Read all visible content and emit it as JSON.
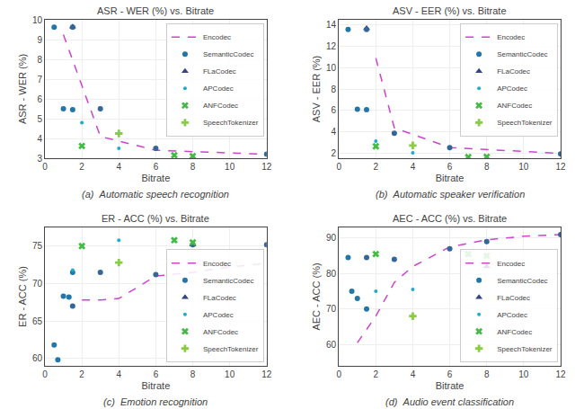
{
  "chart_data": [
    {
      "type": "scatter",
      "title": "ASR - WER (%) vs. Bitrate",
      "xlabel": "Bitrate",
      "ylabel": "ASR - WER (%)",
      "annotations": [
        "(a)  Automatic speech recognition"
      ],
      "xlim": [
        0,
        12
      ],
      "xticks": [
        0,
        2,
        4,
        6,
        8,
        10,
        12
      ],
      "ylim": [
        3.0,
        10.0
      ],
      "yticks": [
        3,
        4,
        5,
        6,
        7,
        8,
        9,
        10
      ],
      "grid": true,
      "legend": "upper right",
      "series": [
        {
          "name": "Encodec",
          "type": "line",
          "line_style": "dashed",
          "color": "#cc44cc",
          "x": [
            1,
            3,
            6,
            12
          ],
          "values": [
            9.25,
            4.1,
            3.4,
            3.2
          ]
        },
        {
          "name": "SemanticCodec",
          "type": "scatter",
          "marker": "circle",
          "color": "#2277aa",
          "x": [
            0.5,
            1.0,
            1.5
          ],
          "values": [
            9.62,
            5.5,
            5.45
          ]
        },
        {
          "name": "FLaCodec",
          "type": "scatter",
          "marker": "triangle-up",
          "color": "#334488",
          "x": [
            1.5
          ],
          "values": [
            9.65
          ]
        },
        {
          "type": "scatter",
          "marker": "circle",
          "color": "#336699",
          "x": [
            1.5,
            3,
            6,
            12
          ],
          "values": [
            9.62,
            5.5,
            3.5,
            3.2
          ]
        },
        {
          "name": "APCodec",
          "type": "scatter",
          "marker": "point",
          "color": "#22aacc",
          "x": [
            2.0,
            4.0
          ],
          "values": [
            4.8,
            3.5
          ]
        },
        {
          "name": "ANFCodec",
          "type": "scatter",
          "marker": "x",
          "color": "#44bb44",
          "x": [
            2.0,
            7.0,
            8.0
          ],
          "values": [
            3.62,
            3.15,
            3.1
          ]
        },
        {
          "name": "SpeechTokenizer",
          "type": "scatter",
          "marker": "cross",
          "color": "#88cc44",
          "x": [
            4.0
          ],
          "values": [
            4.25
          ]
        }
      ]
    },
    {
      "type": "scatter",
      "title": "ASV - EER (%) vs. Bitrate",
      "xlabel": "Bitrate",
      "ylabel": "ASV - EER (%)",
      "annotations": [
        "(b)  Automatic speaker verification"
      ],
      "xlim": [
        0,
        12
      ],
      "xticks": [
        0,
        2,
        4,
        6,
        8,
        10,
        12
      ],
      "ylim": [
        1.5,
        14.5
      ],
      "yticks": [
        2,
        4,
        6,
        8,
        10,
        12,
        14
      ],
      "grid": true,
      "legend": "upper right",
      "series": [
        {
          "name": "Encodec",
          "type": "line",
          "line_style": "dashed",
          "color": "#cc44cc",
          "x": [
            2,
            3,
            6,
            12
          ],
          "values": [
            10.9,
            4.35,
            2.5,
            1.95
          ]
        },
        {
          "name": "SemanticCodec",
          "type": "scatter",
          "marker": "circle",
          "color": "#2277aa",
          "x": [
            0.5,
            1.0,
            1.5
          ],
          "values": [
            13.6,
            6.1,
            6.05
          ]
        },
        {
          "name": "FLaCodec",
          "type": "scatter",
          "marker": "triangle-up",
          "color": "#334488",
          "x": [
            1.5
          ],
          "values": [
            13.7
          ]
        },
        {
          "type": "scatter",
          "marker": "circle",
          "color": "#336699",
          "x": [
            1.5,
            3,
            6,
            12
          ],
          "values": [
            13.6,
            3.85,
            2.5,
            1.9
          ]
        },
        {
          "name": "APCodec",
          "type": "scatter",
          "marker": "point",
          "color": "#22aacc",
          "x": [
            2.0,
            4.0
          ],
          "values": [
            3.1,
            2.0
          ]
        },
        {
          "name": "ANFCodec",
          "type": "scatter",
          "marker": "x",
          "color": "#44bb44",
          "x": [
            2.0,
            7.0,
            8.0
          ],
          "values": [
            2.62,
            1.6,
            1.62
          ]
        },
        {
          "name": "SpeechTokenizer",
          "type": "scatter",
          "marker": "cross",
          "color": "#88cc44",
          "x": [
            4.0
          ],
          "values": [
            2.7
          ]
        }
      ]
    },
    {
      "type": "scatter",
      "title": "ER - ACC (%) vs. Bitrate",
      "xlabel": "Bitrate",
      "ylabel": "ER - ACC (%)",
      "annotations": [
        "(c)  Emotion recognition"
      ],
      "xlim": [
        0,
        12
      ],
      "xticks": [
        0,
        2,
        4,
        6,
        8,
        10,
        12
      ],
      "ylim": [
        59.0,
        77.5
      ],
      "yticks": [
        60,
        65,
        70,
        75
      ],
      "grid": true,
      "legend": "lower right",
      "series": [
        {
          "name": "Encodec",
          "type": "line",
          "line_style": "dashed",
          "color": "#cc44cc",
          "x": [
            2,
            3,
            4,
            6,
            8,
            10,
            12
          ],
          "values": [
            67.8,
            67.8,
            68.0,
            71.0,
            71.5,
            72.2,
            72.7
          ]
        },
        {
          "name": "SemanticCodec",
          "type": "scatter",
          "marker": "circle",
          "color": "#2277aa",
          "x": [
            0.5,
            0.7,
            1.0,
            1.3,
            1.5
          ],
          "values": [
            61.8,
            59.8,
            68.3,
            68.2,
            71.5
          ]
        },
        {
          "name": "FLaCodec",
          "type": "scatter",
          "marker": "triangle-up",
          "color": "#334488",
          "x": [
            8.0
          ],
          "values": [
            75.2
          ]
        },
        {
          "type": "scatter",
          "marker": "circle",
          "color": "#336699",
          "x": [
            1.5,
            3,
            6,
            8,
            12
          ],
          "values": [
            67.0,
            71.5,
            71.2,
            75.2,
            75.2
          ]
        },
        {
          "name": "APCodec",
          "type": "scatter",
          "marker": "point",
          "color": "#22aacc",
          "x": [
            1.5,
            4.0
          ],
          "values": [
            71.8,
            75.8
          ]
        },
        {
          "name": "ANFCodec",
          "type": "scatter",
          "marker": "x",
          "color": "#44bb44",
          "x": [
            2.0,
            7.0,
            8.0
          ],
          "values": [
            75.0,
            75.8,
            75.5
          ]
        },
        {
          "name": "SpeechTokenizer",
          "type": "scatter",
          "marker": "cross",
          "color": "#88cc44",
          "x": [
            4.0
          ],
          "values": [
            72.8
          ]
        }
      ]
    },
    {
      "type": "scatter",
      "title": "AEC - ACC (%) vs. Bitrate",
      "xlabel": "Bitrate",
      "ylabel": "AEC - ACC (%)",
      "annotations": [
        "(d)  Audio event classification"
      ],
      "xlim": [
        0,
        12
      ],
      "xticks": [
        0,
        2,
        4,
        6,
        8,
        10,
        12
      ],
      "ylim": [
        54.0,
        93.0
      ],
      "yticks": [
        60,
        70,
        80,
        90
      ],
      "grid": true,
      "legend": "lower right",
      "series": [
        {
          "name": "Encodec",
          "type": "line",
          "line_style": "dashed",
          "color": "#cc44cc",
          "x": [
            1,
            2,
            3,
            4,
            6,
            8,
            10,
            12
          ],
          "values": [
            60.5,
            68.0,
            77.5,
            82.0,
            87.5,
            89.5,
            90.5,
            91.0
          ]
        },
        {
          "name": "SemanticCodec",
          "type": "scatter",
          "marker": "circle",
          "color": "#2277aa",
          "x": [
            0.5,
            0.7,
            1.0,
            1.5
          ],
          "values": [
            84.5,
            75.0,
            73.0,
            70.0
          ]
        },
        {
          "name": "FLaCodec",
          "type": "scatter",
          "marker": "triangle-up",
          "color": "#334488",
          "x": [
            8.0
          ],
          "values": [
            82.0
          ]
        },
        {
          "type": "scatter",
          "marker": "circle",
          "color": "#336699",
          "x": [
            1.5,
            3,
            6,
            8,
            12
          ],
          "values": [
            84.5,
            84.0,
            87.0,
            89.0,
            91.0
          ]
        },
        {
          "name": "APCodec",
          "type": "scatter",
          "marker": "point",
          "color": "#22aacc",
          "x": [
            2.0,
            4.0
          ],
          "values": [
            75.0,
            75.5
          ]
        },
        {
          "name": "ANFCodec",
          "type": "scatter",
          "marker": "x",
          "color": "#44bb44",
          "x": [
            2.0,
            7.0,
            8.0
          ],
          "values": [
            85.5,
            85.5,
            85.0
          ]
        },
        {
          "name": "SpeechTokenizer",
          "type": "scatter",
          "marker": "cross",
          "color": "#88cc44",
          "x": [
            4.0
          ],
          "values": [
            68.0
          ]
        }
      ]
    }
  ]
}
